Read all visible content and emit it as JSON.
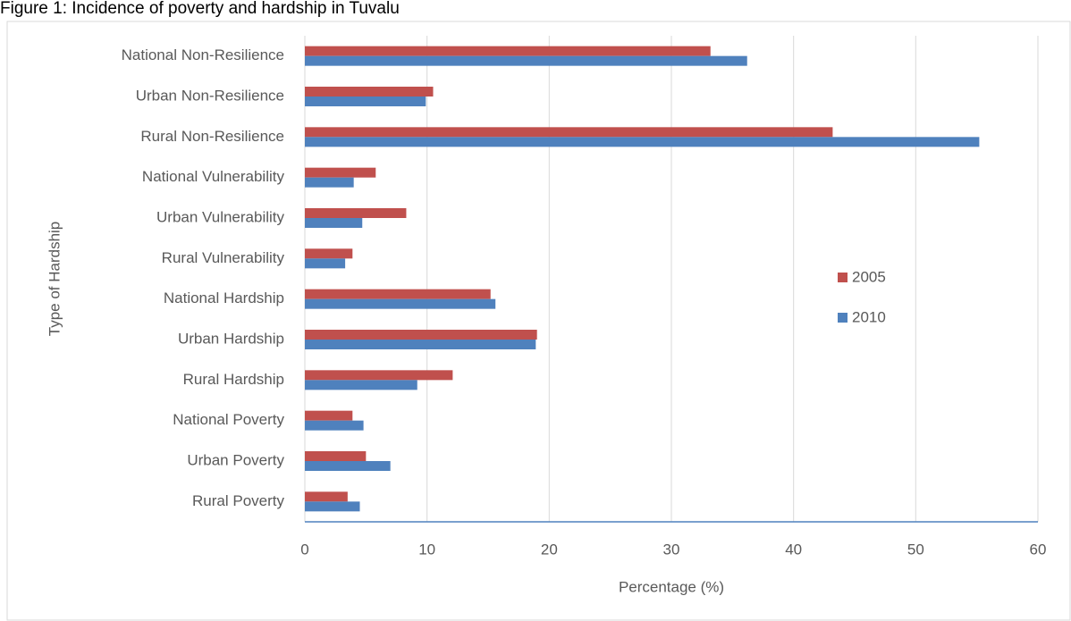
{
  "chart_data": {
    "type": "barh",
    "title": "Figure 1: Incidence of poverty and hardship in Tuvalu",
    "xlabel": "Percentage (%)",
    "ylabel": "Type of Hardship",
    "categories": [
      "National Non-Resilience",
      "Urban Non-Resilience",
      "Rural Non-Resilience",
      "National Vulnerability",
      "Urban Vulnerability",
      "Rural Vulnerability",
      "National Hardship",
      "Urban Hardship",
      "Rural Hardship",
      "National Poverty",
      "Urban Poverty",
      "Rural Poverty"
    ],
    "series": [
      {
        "name": "2005",
        "color": "#c0504d",
        "values": [
          33.2,
          10.5,
          43.2,
          5.8,
          8.3,
          3.9,
          15.2,
          19.0,
          12.1,
          3.9,
          5.0,
          3.5
        ]
      },
      {
        "name": "2010",
        "color": "#4f81bd",
        "values": [
          36.2,
          9.9,
          55.2,
          4.0,
          4.7,
          3.3,
          15.6,
          18.9,
          9.2,
          4.8,
          7.0,
          4.5
        ]
      }
    ],
    "xlim": [
      0,
      60
    ],
    "xticks": [
      0,
      10,
      20,
      30,
      40,
      50,
      60
    ],
    "grid": true
  }
}
